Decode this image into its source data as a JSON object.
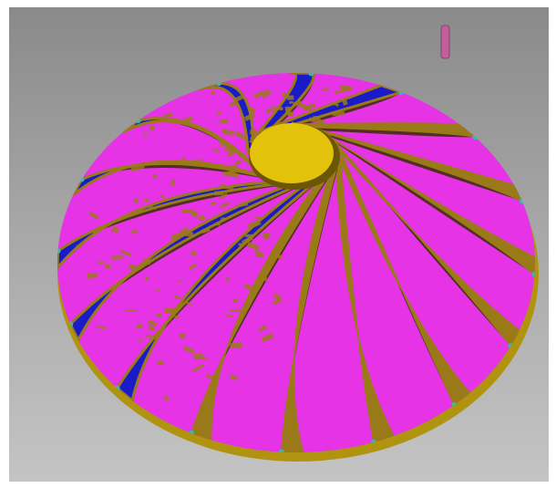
{
  "viewport": {
    "background_top": "#8a8a8a",
    "background_bottom": "#c4c4c4"
  },
  "model": {
    "kind": "impeller",
    "colors": {
      "hub_cap": "#e2c20a",
      "base_ring": "#b0930f",
      "blade_gold": "#9a7a18",
      "blade_shadow": "#3a2e08",
      "blade_blue": "#1a1ac8",
      "channel_magenta": "#e533e5",
      "edge_cyan": "#2fbdb4",
      "tool": "#c0609a"
    },
    "blade_count": 16
  }
}
